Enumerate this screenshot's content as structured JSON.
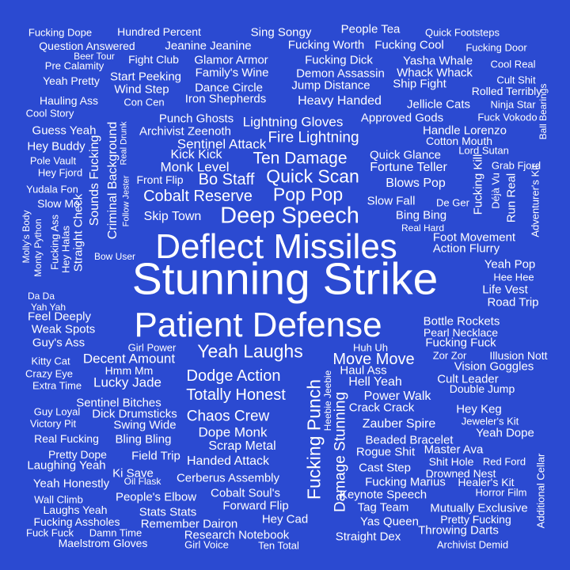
{
  "background_color": "#2b4ad1",
  "text_color": "#ffffff",
  "words": [
    "Stunning Strike",
    "Deflect Missiles",
    "Patient Defense",
    "Deep Speech",
    "Yeah Laughs",
    "Fucking Punch",
    "Damage Stunning",
    "Pop Pop",
    "Quick Scan",
    "Ten Damage",
    "Cobalt Reserve",
    "Bo Staff",
    "Dodge Action",
    "Totally Honest",
    "Move Move",
    "Chaos Crew",
    "Fire Lightning",
    "Monk Level",
    "Sentinel Attack",
    "Lightning Gloves",
    "Decent Amount",
    "Lucky Jade",
    "Dope Monk",
    "Criminal Background",
    "Sounds Fucking",
    "Heavy Handed",
    "Skip Town",
    "Fortune Teller",
    "Blows Pop",
    "Hell Yeah",
    "Power Walk",
    "Zauber Spire",
    "Handed Attack",
    "Kick Kick",
    "Scrap Metal",
    "Straight Check",
    "Jump Distance",
    "Fucking Fuck",
    "Bottle Rockets",
    "Quick Glance",
    "Slow Fall",
    "Bing Bing",
    "Foot Movement",
    "Action Flurry",
    "Cerberus Assembly",
    "Fucking Dick",
    "Demon Assassin",
    "Yasha Whale",
    "Whack Whack",
    "Ship Fight",
    "Jellicle Cats",
    "Approved Gods",
    "Handle Lorenzo",
    "Cotton Mouth",
    "Punch Ghosts",
    "Archivist Zeenoth",
    "Iron Shepherds",
    "Wind Step",
    "Start Peeking",
    "Dance Circle",
    "Family's Wine",
    "Glamor Armor",
    "Jeanine Jeanine",
    "Fight Club",
    "Sing Songy",
    "Fucking Worth",
    "Fucking Cool",
    "People Tea",
    "Hundred Percent",
    "Question Answered",
    "Keynote Speech",
    "Fucking Marius",
    "Tag Team",
    "Yas Queen",
    "Hey Cad",
    "Straight Dex",
    "Research Notebook",
    "Remember Dairon",
    "Forward Flip",
    "Cobalt Soul's",
    "Stats Stats",
    "Maelstrom Gloves",
    "Fucking Assholes",
    "Laughs Yeah",
    "People's Elbow",
    "Yeah Honestly",
    "Ki Save",
    "Field Trip",
    "Laughing Yeah",
    "Pretty Dope",
    "Bling Bling",
    "Swing Wide",
    "Dick Drumsticks",
    "Sentinel Bitches",
    "Real Fucking",
    "Victory Pit",
    "Guy Loyal",
    "Extra Time",
    "Crazy Eye",
    "Kitty Cat",
    "Hmm Mm",
    "Guy's Ass",
    "Weak Spots",
    "Feel Deeply",
    "Yah Yah",
    "Da Da",
    "Girl Power",
    "Yeah Pop",
    "Life Vest",
    "Road Trip",
    "Hee Hee",
    "Pearl Necklace",
    "Illusion Nott",
    "Zor Zor",
    "Vision Goggles",
    "Cult Leader",
    "Double Jump",
    "Hey Keg",
    "Jeweler's Kit",
    "Yeah Dope",
    "Beaded Bracelet",
    "Rogue Shit",
    "Master Ava",
    "Shit Hole",
    "Red Ford",
    "Cast Step",
    "Drowned Nest",
    "Healer's Kit",
    "Horror Film",
    "Mutually Exclusive",
    "Pretty Fucking",
    "Throwing Darts",
    "Archivist Demid",
    "Crack Crack",
    "Haul Ass",
    "Huh Uh",
    "Heebie Jeebie",
    "Run Real",
    "Fucking Kill",
    "Déjà Vu",
    "Adventurer's Kit",
    "Ball Bearings",
    "Lord Sutan",
    "Grab Fjord",
    "De Ger",
    "Real Hard",
    "Ninja Star",
    "Fuck Vokodo",
    "Cult Shit",
    "Cool Real",
    "Rolled Terribly",
    "Fucking Door",
    "Quick Footsteps",
    "Con Cen",
    "Hauling Ass",
    "Cool Story",
    "Yeah Pretty",
    "Pre Calamity",
    "Beer Tour",
    "Fucking Dope",
    "Guess Yeah",
    "Hey Buddy",
    "Pole Vault",
    "Hey Fjord",
    "Yudala Fon",
    "Slow Mo",
    "Front Flip",
    "Follow Jester",
    "Real Drunk",
    "Fucking Ass",
    "Hey Halas",
    "Molly's Body",
    "Monty Python",
    "Bow User",
    "Wall Climb",
    "Oil Flask",
    "Fuck Fuck",
    "Damn Time",
    "Girl Voice",
    "Ten Total",
    "Additional Cellar"
  ]
}
